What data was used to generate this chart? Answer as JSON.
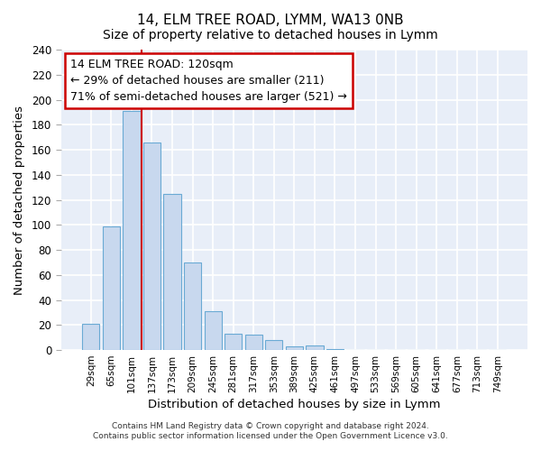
{
  "title": "14, ELM TREE ROAD, LYMM, WA13 0NB",
  "subtitle": "Size of property relative to detached houses in Lymm",
  "xlabel": "Distribution of detached houses by size in Lymm",
  "ylabel": "Number of detached properties",
  "bar_labels": [
    "29sqm",
    "65sqm",
    "101sqm",
    "137sqm",
    "173sqm",
    "209sqm",
    "245sqm",
    "281sqm",
    "317sqm",
    "353sqm",
    "389sqm",
    "425sqm",
    "461sqm",
    "497sqm",
    "533sqm",
    "569sqm",
    "605sqm",
    "641sqm",
    "677sqm",
    "713sqm",
    "749sqm"
  ],
  "bar_values": [
    21,
    99,
    191,
    166,
    125,
    70,
    31,
    13,
    12,
    8,
    3,
    4,
    1,
    0,
    0,
    0,
    0,
    0,
    0,
    0,
    0
  ],
  "bar_color": "#c8d8ee",
  "bar_edge_color": "#6aaad4",
  "vline_color": "#cc0000",
  "annotation_title": "14 ELM TREE ROAD: 120sqm",
  "annotation_line1": "← 29% of detached houses are smaller (211)",
  "annotation_line2": "71% of semi-detached houses are larger (521) →",
  "annotation_box_color": "white",
  "annotation_box_edge_color": "#cc0000",
  "ylim": [
    0,
    240
  ],
  "yticks": [
    0,
    20,
    40,
    60,
    80,
    100,
    120,
    140,
    160,
    180,
    200,
    220,
    240
  ],
  "footer1": "Contains HM Land Registry data © Crown copyright and database right 2024.",
  "footer2": "Contains public sector information licensed under the Open Government Licence v3.0.",
  "bg_color": "#ffffff",
  "plot_bg_color": "#e8eef8",
  "grid_color": "#ffffff",
  "title_fontsize": 11,
  "subtitle_fontsize": 10
}
